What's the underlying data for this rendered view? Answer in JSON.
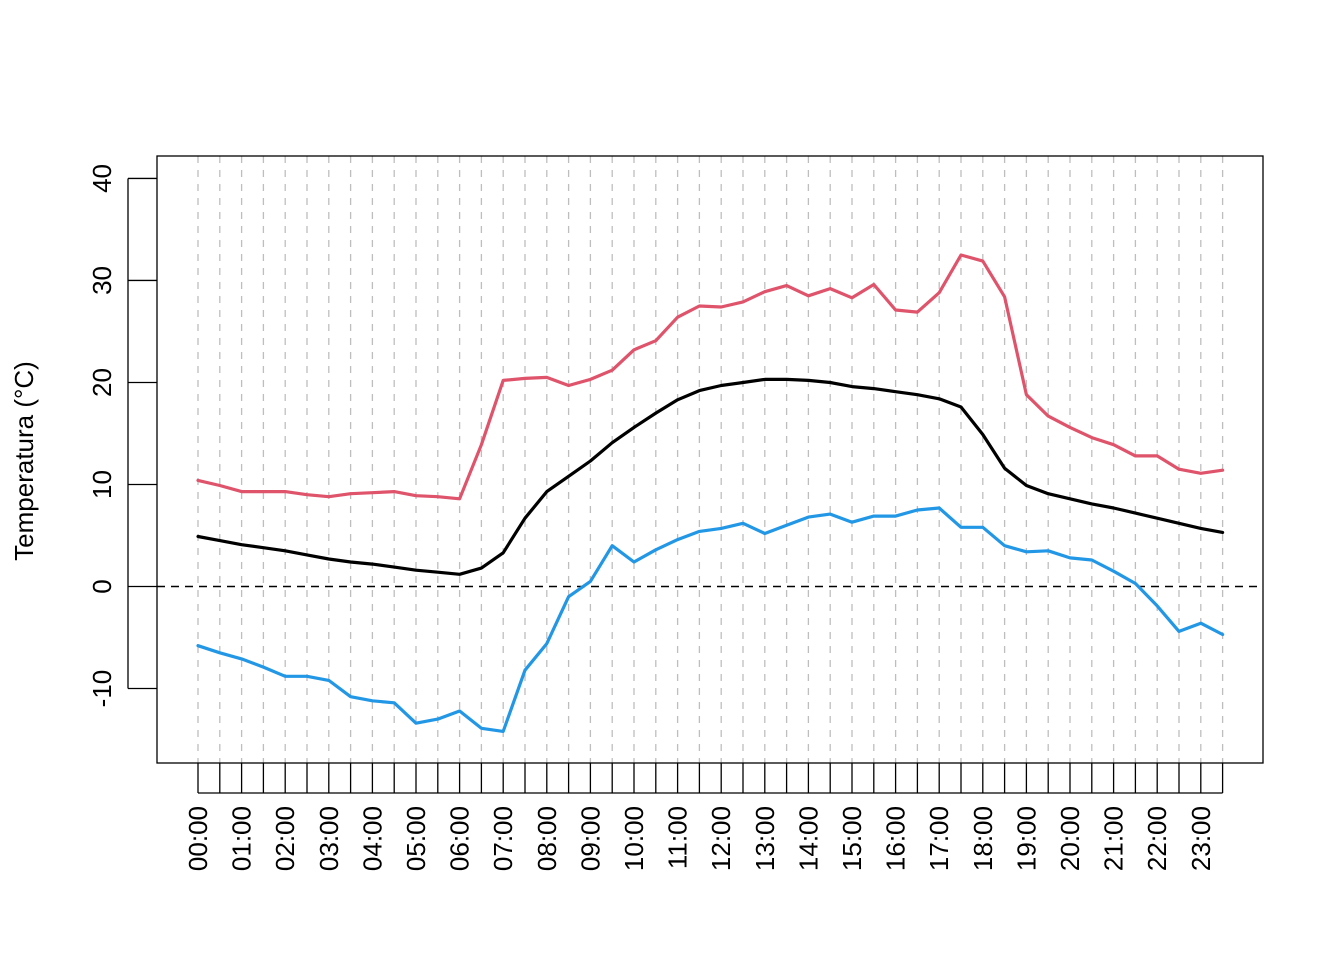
{
  "chart_data": {
    "type": "line",
    "title": "",
    "xlabel": "",
    "ylabel": "Temperatura (°C)",
    "ylim": [
      -17.3,
      42.2
    ],
    "yticks": [
      -10,
      0,
      10,
      20,
      30,
      40
    ],
    "ytick_labels": [
      "-10",
      "0",
      "10",
      "20",
      "30",
      "40"
    ],
    "x": [
      "00:00",
      "00:30",
      "01:00",
      "01:30",
      "02:00",
      "02:30",
      "03:00",
      "03:30",
      "04:00",
      "04:30",
      "05:00",
      "05:30",
      "06:00",
      "06:30",
      "07:00",
      "07:30",
      "08:00",
      "08:30",
      "09:00",
      "09:30",
      "10:00",
      "10:30",
      "11:00",
      "11:30",
      "12:00",
      "12:30",
      "13:00",
      "13:30",
      "14:00",
      "14:30",
      "15:00",
      "15:30",
      "16:00",
      "16:30",
      "17:00",
      "17:30",
      "18:00",
      "18:30",
      "19:00",
      "19:30",
      "20:00",
      "20:30",
      "21:00",
      "21:30",
      "22:00",
      "22:30",
      "23:00",
      "23:30"
    ],
    "xtick_labels": [
      "00:00",
      "01:00",
      "02:00",
      "03:00",
      "04:00",
      "05:00",
      "06:00",
      "07:00",
      "08:00",
      "09:00",
      "10:00",
      "11:00",
      "12:00",
      "13:00",
      "14:00",
      "15:00",
      "16:00",
      "17:00",
      "18:00",
      "19:00",
      "20:00",
      "21:00",
      "22:00",
      "23:00"
    ],
    "grid": "vertical dashed lines at every half hour",
    "reference_line": {
      "y": 0,
      "style": "dashed",
      "color": "#000000"
    },
    "series": [
      {
        "color": "#DF536B",
        "values": [
          10.4,
          9.9,
          9.3,
          9.3,
          9.3,
          9.0,
          8.8,
          9.1,
          9.2,
          9.3,
          8.9,
          8.8,
          8.6,
          13.9,
          20.2,
          20.4,
          20.5,
          19.7,
          20.3,
          21.2,
          23.2,
          24.1,
          26.4,
          27.5,
          27.4,
          27.9,
          28.9,
          29.5,
          28.5,
          29.2,
          28.3,
          29.6,
          27.1,
          26.9,
          28.8,
          32.5,
          31.9,
          28.4,
          18.8,
          16.7,
          15.6,
          14.6,
          13.9,
          12.8,
          12.8,
          11.5,
          11.1,
          11.4
        ]
      },
      {
        "color": "#000000",
        "values": [
          4.9,
          4.5,
          4.1,
          3.8,
          3.5,
          3.1,
          2.7,
          2.4,
          2.2,
          1.9,
          1.6,
          1.4,
          1.2,
          1.8,
          3.3,
          6.7,
          9.3,
          10.8,
          12.3,
          14.1,
          15.6,
          17.0,
          18.3,
          19.2,
          19.7,
          20.0,
          20.3,
          20.3,
          20.2,
          20.0,
          19.6,
          19.4,
          19.1,
          18.8,
          18.4,
          17.6,
          14.9,
          11.6,
          9.9,
          9.1,
          8.6,
          8.1,
          7.7,
          7.2,
          6.7,
          6.2,
          5.7,
          5.3
        ]
      },
      {
        "color": "#2297E6",
        "values": [
          -5.8,
          -6.5,
          -7.1,
          -7.9,
          -8.8,
          -8.8,
          -9.2,
          -10.8,
          -11.2,
          -11.4,
          -13.4,
          -13.0,
          -12.2,
          -13.9,
          -14.2,
          -8.2,
          -5.6,
          -1.0,
          0.5,
          4.0,
          2.4,
          3.6,
          4.6,
          5.4,
          5.7,
          6.2,
          5.2,
          6.0,
          6.8,
          7.1,
          6.3,
          6.9,
          6.9,
          7.5,
          7.7,
          5.8,
          5.8,
          4.0,
          3.4,
          3.5,
          2.8,
          2.6,
          1.5,
          0.3,
          -1.9,
          -4.4,
          -3.6,
          -4.7
        ]
      }
    ]
  }
}
